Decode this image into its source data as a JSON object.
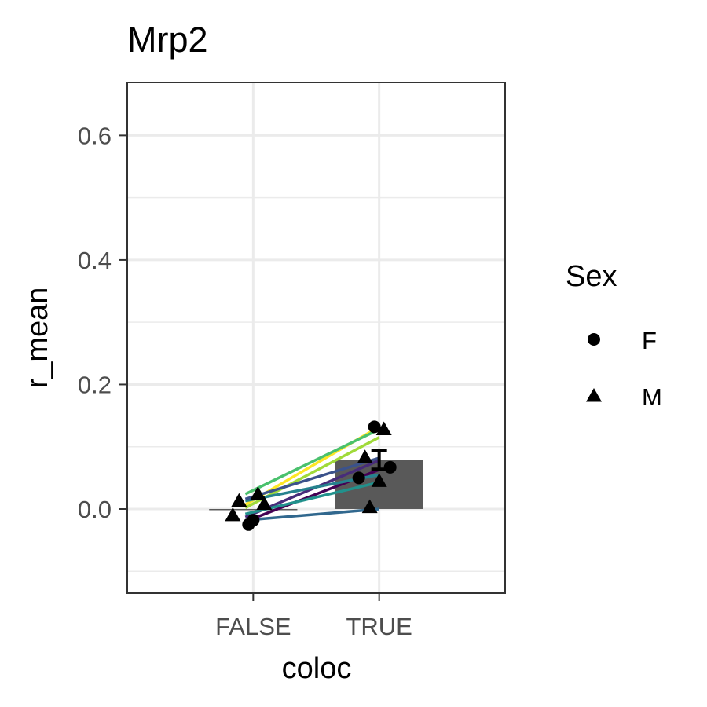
{
  "chart_data": {
    "type": "bar",
    "title": "Mrp2",
    "xlabel": "coloc",
    "ylabel": "r_mean",
    "categories": [
      "FALSE",
      "TRUE"
    ],
    "ylim": [
      -0.135,
      0.685
    ],
    "yticks": [
      0.0,
      0.2,
      0.4,
      0.6
    ],
    "ytick_labels": [
      "0.0",
      "0.2",
      "0.4",
      "0.6"
    ],
    "grid": true,
    "bars": [
      {
        "category": "FALSE",
        "value": 0.0,
        "error": null
      },
      {
        "category": "TRUE",
        "value": 0.079,
        "error": 0.015
      }
    ],
    "points": [
      {
        "category": "FALSE",
        "value": -0.025,
        "sex": "F"
      },
      {
        "category": "FALSE",
        "value": 0.024,
        "sex": "M"
      },
      {
        "category": "FALSE",
        "value": 0.013,
        "sex": "M"
      },
      {
        "category": "FALSE",
        "value": 0.008,
        "sex": "M"
      },
      {
        "category": "FALSE",
        "value": -0.01,
        "sex": "M"
      },
      {
        "category": "FALSE",
        "value": -0.018,
        "sex": "F"
      },
      {
        "category": "TRUE",
        "value": 0.132,
        "sex": "F"
      },
      {
        "category": "TRUE",
        "value": 0.128,
        "sex": "M"
      },
      {
        "category": "TRUE",
        "value": 0.083,
        "sex": "M"
      },
      {
        "category": "TRUE",
        "value": 0.067,
        "sex": "F"
      },
      {
        "category": "TRUE",
        "value": 0.05,
        "sex": "F"
      },
      {
        "category": "TRUE",
        "value": 0.045,
        "sex": "M"
      },
      {
        "category": "TRUE",
        "value": 0.003,
        "sex": "M"
      }
    ],
    "pairs": [
      {
        "false_value": -0.018,
        "true_value": 0.0,
        "color": "#31688e"
      },
      {
        "false_value": -0.02,
        "true_value": 0.063,
        "color": "#440154"
      },
      {
        "false_value": -0.013,
        "true_value": 0.078,
        "color": "#472c7a"
      },
      {
        "false_value": -0.008,
        "true_value": 0.043,
        "color": "#21918c"
      },
      {
        "false_value": 0.002,
        "true_value": 0.115,
        "color": "#a0da39"
      },
      {
        "false_value": 0.007,
        "true_value": 0.132,
        "color": "#fde725"
      },
      {
        "false_value": 0.013,
        "true_value": 0.055,
        "color": "#26828e"
      },
      {
        "false_value": 0.016,
        "true_value": 0.082,
        "color": "#3b528b"
      },
      {
        "false_value": 0.024,
        "true_value": 0.128,
        "color": "#4ac16d"
      }
    ],
    "legend": {
      "title": "Sex",
      "position": "right",
      "entries": [
        {
          "label": "F",
          "shape": "circle"
        },
        {
          "label": "M",
          "shape": "triangle"
        }
      ]
    },
    "colors": {
      "bar_fill": "#595959",
      "grid": "#ebebeb",
      "panel_border": "#333333",
      "point": "#000000",
      "errorbar": "#000000"
    }
  }
}
